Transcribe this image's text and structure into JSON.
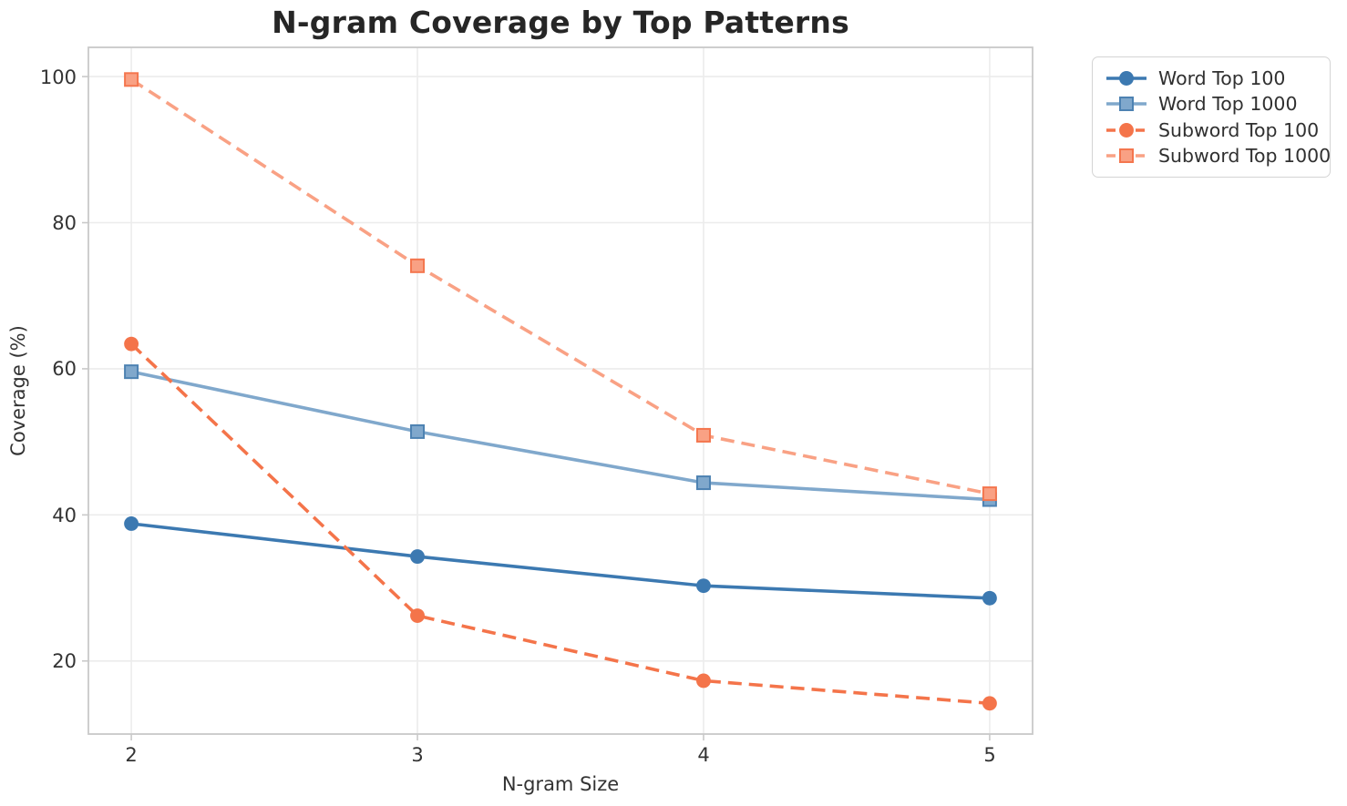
{
  "figure": {
    "background": "#ffffff"
  },
  "chart_data": {
    "type": "line",
    "title": "N-gram Coverage by Top Patterns",
    "xlabel": "N-gram Size",
    "ylabel": "Coverage (%)",
    "x": [
      2,
      3,
      4,
      5
    ],
    "xtick_labels": [
      "2",
      "3",
      "4",
      "5"
    ],
    "ytick_values": [
      20,
      40,
      60,
      80,
      100
    ],
    "ytick_labels": [
      "20",
      "40",
      "60",
      "80",
      "100"
    ],
    "xlim": [
      1.85,
      5.15
    ],
    "ylim": [
      10,
      104
    ],
    "grid": true,
    "grid_color": "#ececec",
    "spine_color": "#c9c9c9",
    "legend_position": "outside upper right",
    "series": [
      {
        "name": "Word Top 100",
        "values": [
          38.8,
          34.3,
          30.3,
          28.6
        ],
        "color": "#3c79b1",
        "line_style": "solid",
        "marker": "circle"
      },
      {
        "name": "Word Top 1000",
        "values": [
          59.6,
          51.4,
          44.4,
          42.1
        ],
        "color": "#80a8cc",
        "marker_edge_color": "#4d82b2",
        "line_style": "solid",
        "marker": "square"
      },
      {
        "name": "Subword Top 100",
        "values": [
          63.4,
          26.2,
          17.3,
          14.2
        ],
        "color": "#f4744a",
        "line_style": "dashed",
        "marker": "circle"
      },
      {
        "name": "Subword Top 1000",
        "values": [
          99.6,
          74.1,
          50.9,
          42.9
        ],
        "color": "#f9a184",
        "marker_edge_color": "#f4764e",
        "line_style": "dashed",
        "marker": "square"
      }
    ]
  }
}
